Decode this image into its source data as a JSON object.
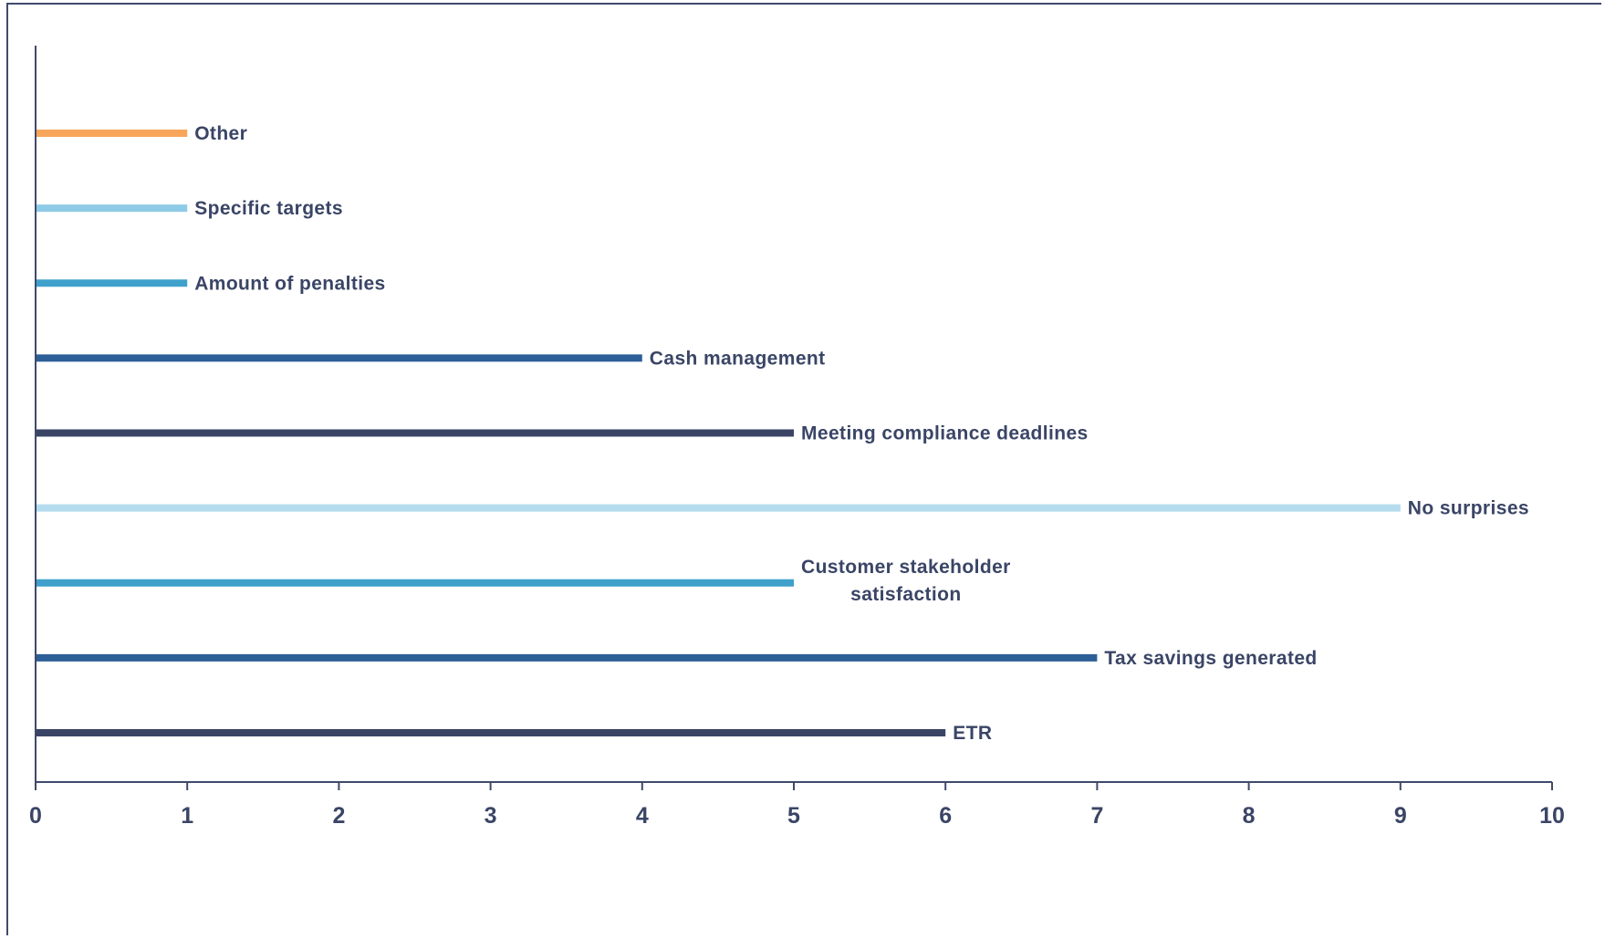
{
  "chart_data": {
    "type": "bar",
    "orientation": "horizontal",
    "title": "",
    "xlabel": "",
    "ylabel": "",
    "xlim": [
      0,
      10
    ],
    "x_ticks": [
      "0",
      "1",
      "2",
      "3",
      "4",
      "5",
      "6",
      "7",
      "8",
      "9",
      "10"
    ],
    "grid": false,
    "legend": "none",
    "categories": [
      "ETR",
      "Tax savings generated",
      "Customer stakeholder satisfaction",
      "No surprises",
      "Meeting compliance deadlines",
      "Cash management",
      "Amount of penalties",
      "Specific targets",
      "Other"
    ],
    "label_lines": [
      [
        "ETR"
      ],
      [
        "Tax savings generated"
      ],
      [
        "Customer stakeholder",
        "satisfaction"
      ],
      [
        "No surprises"
      ],
      [
        "Meeting compliance deadlines"
      ],
      [
        "Cash management"
      ],
      [
        "Amount of penalties"
      ],
      [
        "Specific targets"
      ],
      [
        "Other"
      ]
    ],
    "values": [
      6,
      7,
      5,
      9,
      5,
      4,
      1,
      1,
      1
    ],
    "colors": [
      "#3a4566",
      "#2d5f97",
      "#3fa1cb",
      "#b5dcee",
      "#3a4566",
      "#2d5f97",
      "#3fa1cb",
      "#8ecbe6",
      "#f8a55c"
    ],
    "axis_color": "#3f4a6b",
    "text_color": "#3a4566"
  }
}
